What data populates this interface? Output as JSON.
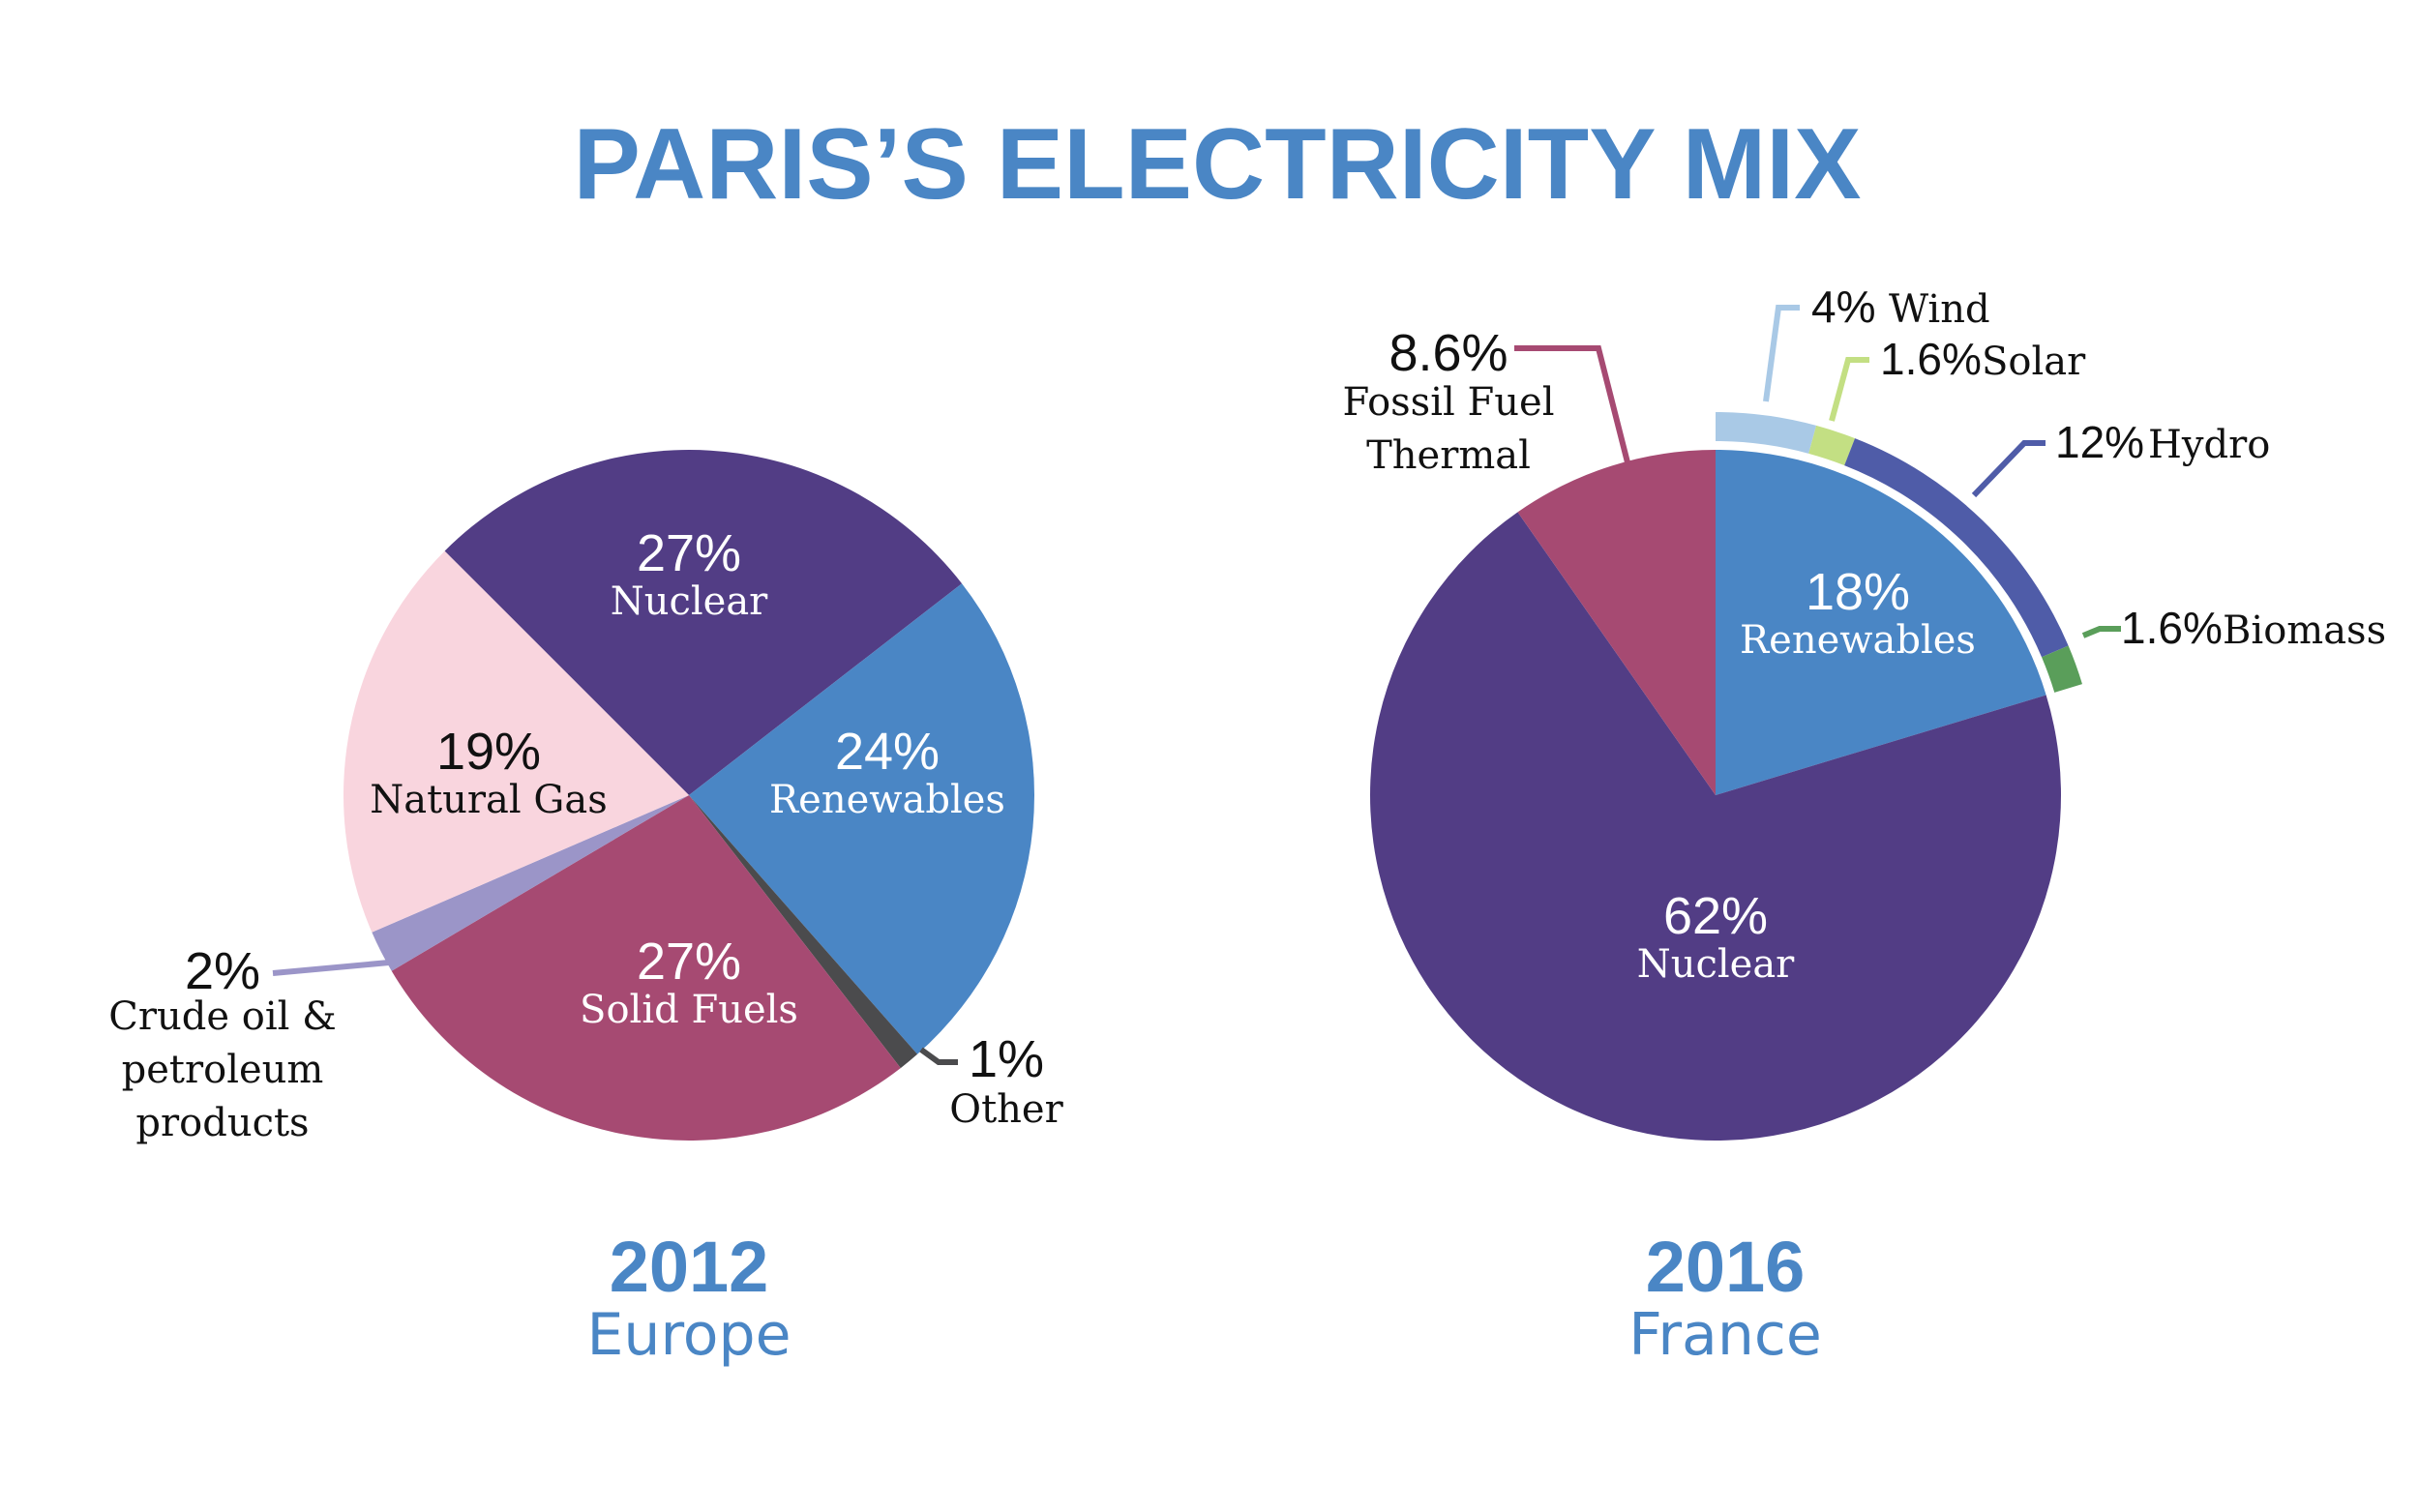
{
  "title": "PARIS’S ELECTRICITY MIX",
  "colors": {
    "title": "#4a86c5",
    "nuclear": "#523d85",
    "renewables": "#4a86c5",
    "solid_fuels": "#a64a72",
    "natural_gas": "#f9d5de",
    "crude_oil": "#9b95c8",
    "other": "#4b4b4d",
    "fossil_thermal": "#a64a72",
    "wind": "#a9c9e6",
    "solar": "#c3df83",
    "hydro": "#4f5ca8",
    "biomass": "#5a9e5a"
  },
  "chart_data": [
    {
      "type": "pie",
      "year": "2012",
      "region": "Europe",
      "slices": [
        {
          "key": "nuclear",
          "pct": "27%",
          "name": "Nuclear",
          "value": 27,
          "color": "#523d85"
        },
        {
          "key": "renewables",
          "pct": "24%",
          "name": "Renewables",
          "value": 24,
          "color": "#4a86c5"
        },
        {
          "key": "other",
          "pct": "1%",
          "name": "Other",
          "value": 1,
          "color": "#4b4b4d"
        },
        {
          "key": "solid_fuels",
          "pct": "27%",
          "name": "Solid Fuels",
          "value": 27,
          "color": "#a64a72"
        },
        {
          "key": "crude_oil",
          "pct": "2%",
          "name_lines": [
            "Crude oil &",
            "petroleum",
            "products"
          ],
          "value": 2,
          "color": "#9b95c8"
        },
        {
          "key": "natural_gas",
          "pct": "19%",
          "name": "Natural Gas",
          "value": 19,
          "color": "#f9d5de"
        }
      ]
    },
    {
      "type": "pie",
      "year": "2016",
      "region": "France",
      "slices": [
        {
          "key": "renewables",
          "pct": "18%",
          "name": "Renewables",
          "value": 18,
          "color": "#4a86c5"
        },
        {
          "key": "nuclear",
          "pct": "62%",
          "name": "Nuclear",
          "value": 62,
          "color": "#523d85"
        },
        {
          "key": "fossil_thermal",
          "pct": "8.6%",
          "name_lines": [
            "Fossil Fuel",
            "Thermal"
          ],
          "value": 8.6,
          "color": "#a64a72"
        }
      ],
      "renewables_breakdown": [
        {
          "key": "wind",
          "pct": "4%",
          "name": "Wind",
          "value": 4,
          "color": "#a9c9e6"
        },
        {
          "key": "solar",
          "pct": "1.6%",
          "name": "Solar",
          "value": 1.6,
          "color": "#c3df83"
        },
        {
          "key": "hydro",
          "pct": "12%",
          "name": "Hydro",
          "value": 12,
          "color": "#4f5ca8"
        },
        {
          "key": "biomass",
          "pct": "1.6%",
          "name": "Biomass",
          "value": 1.6,
          "color": "#5a9e5a"
        }
      ]
    }
  ]
}
